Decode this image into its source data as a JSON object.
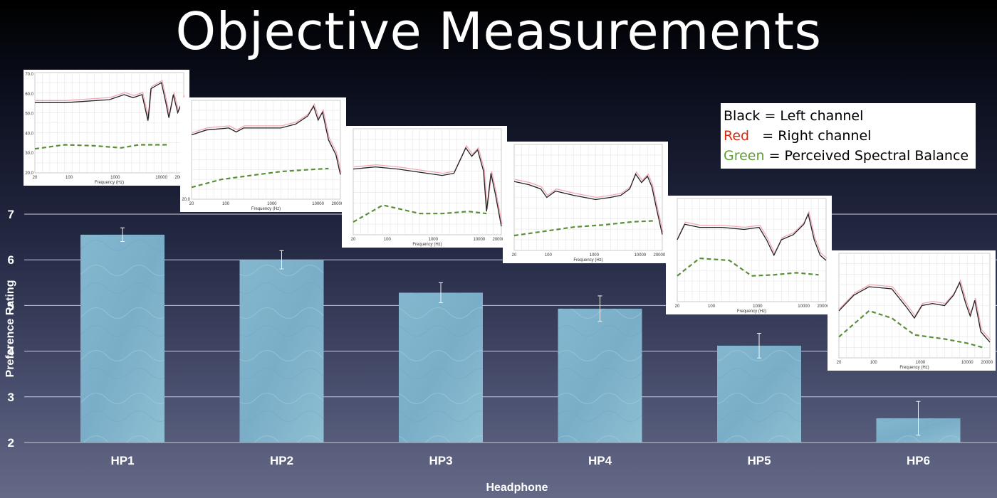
{
  "title": "Objective Measurements",
  "colors": {
    "bar_fill": "#7fb2cc",
    "grid": "#c9cbd6",
    "text": "#ffffff",
    "left_channel": "#222222",
    "right_channel": "#f2a8b4",
    "perceived_balance": "#5a8f38"
  },
  "legend": {
    "line1": {
      "color_word": "Black",
      "rest": " = Left channel"
    },
    "line2": {
      "color_word": "Red",
      "rest": "   = Right channel"
    },
    "line3": {
      "color_word": "Green",
      "rest": " = Perceived Spectral Balance"
    }
  },
  "chart_data": {
    "type": "bar",
    "categories": [
      "HP1",
      "HP2",
      "HP3",
      "HP4",
      "HP5",
      "HP6"
    ],
    "values": [
      6.55,
      6.0,
      5.28,
      4.93,
      4.12,
      2.53
    ],
    "error": [
      0.15,
      0.2,
      0.22,
      0.28,
      0.27,
      0.37
    ],
    "xlabel": "Headphone",
    "ylabel": "Preference Rating",
    "ylim": [
      2,
      7
    ],
    "yticks": [
      2,
      3,
      4,
      5,
      6,
      7
    ],
    "grid": true
  },
  "insets": [
    {
      "id": "HP1",
      "yticks": [
        "70.0",
        "60.0",
        "50.0",
        "40.0",
        "30.0",
        "20.0"
      ],
      "xticks": [
        "20",
        "100",
        "1000",
        "10000",
        "20000"
      ],
      "xlabel": "Frequency (Hz)"
    },
    {
      "id": "HP2",
      "yticks": [
        "20.0"
      ],
      "xticks": [
        "20",
        "100",
        "1000",
        "10000",
        "20000"
      ],
      "xlabel": "Frequency (Hz)"
    },
    {
      "id": "HP3",
      "yticks": [],
      "xticks": [
        "20",
        "100",
        "1000",
        "10000",
        "20000"
      ],
      "xlabel": "Frequency (Hz)"
    },
    {
      "id": "HP4",
      "yticks": [],
      "xticks": [
        "20",
        "100",
        "1000",
        "10000",
        "20000"
      ],
      "xlabel": "Frequency (Hz)"
    },
    {
      "id": "HP5",
      "yticks": [],
      "xticks": [
        "20",
        "100",
        "1000",
        "10000",
        "20000"
      ],
      "xlabel": "Frequency (Hz)"
    },
    {
      "id": "HP6",
      "yticks": [],
      "xticks": [
        "20",
        "100",
        "1000",
        "10000",
        "20000"
      ],
      "xlabel": "Frequency (Hz)"
    }
  ]
}
